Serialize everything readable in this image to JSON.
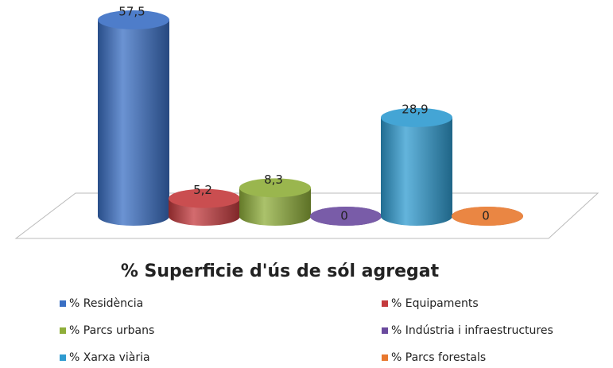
{
  "chart_data": {
    "type": "bar3d",
    "title": "% Superficie d'ús de sól agregat",
    "categories": [
      "% Residència",
      "% Equipaments",
      "% Parcs urbans",
      "% Indústria i infraestructures",
      "% Xarxa viària",
      "% Parcs forestals"
    ],
    "values": [
      57.5,
      5.2,
      8.3,
      0,
      28.9,
      0
    ],
    "value_labels": [
      "57,5",
      "5,2",
      "8,3",
      "0",
      "28,9",
      "0"
    ],
    "colors": [
      "#3a6fc4",
      "#c43a3d",
      "#8fae3a",
      "#6a4a9e",
      "#2f9bd0",
      "#e8782e"
    ],
    "legend": "bottom"
  }
}
